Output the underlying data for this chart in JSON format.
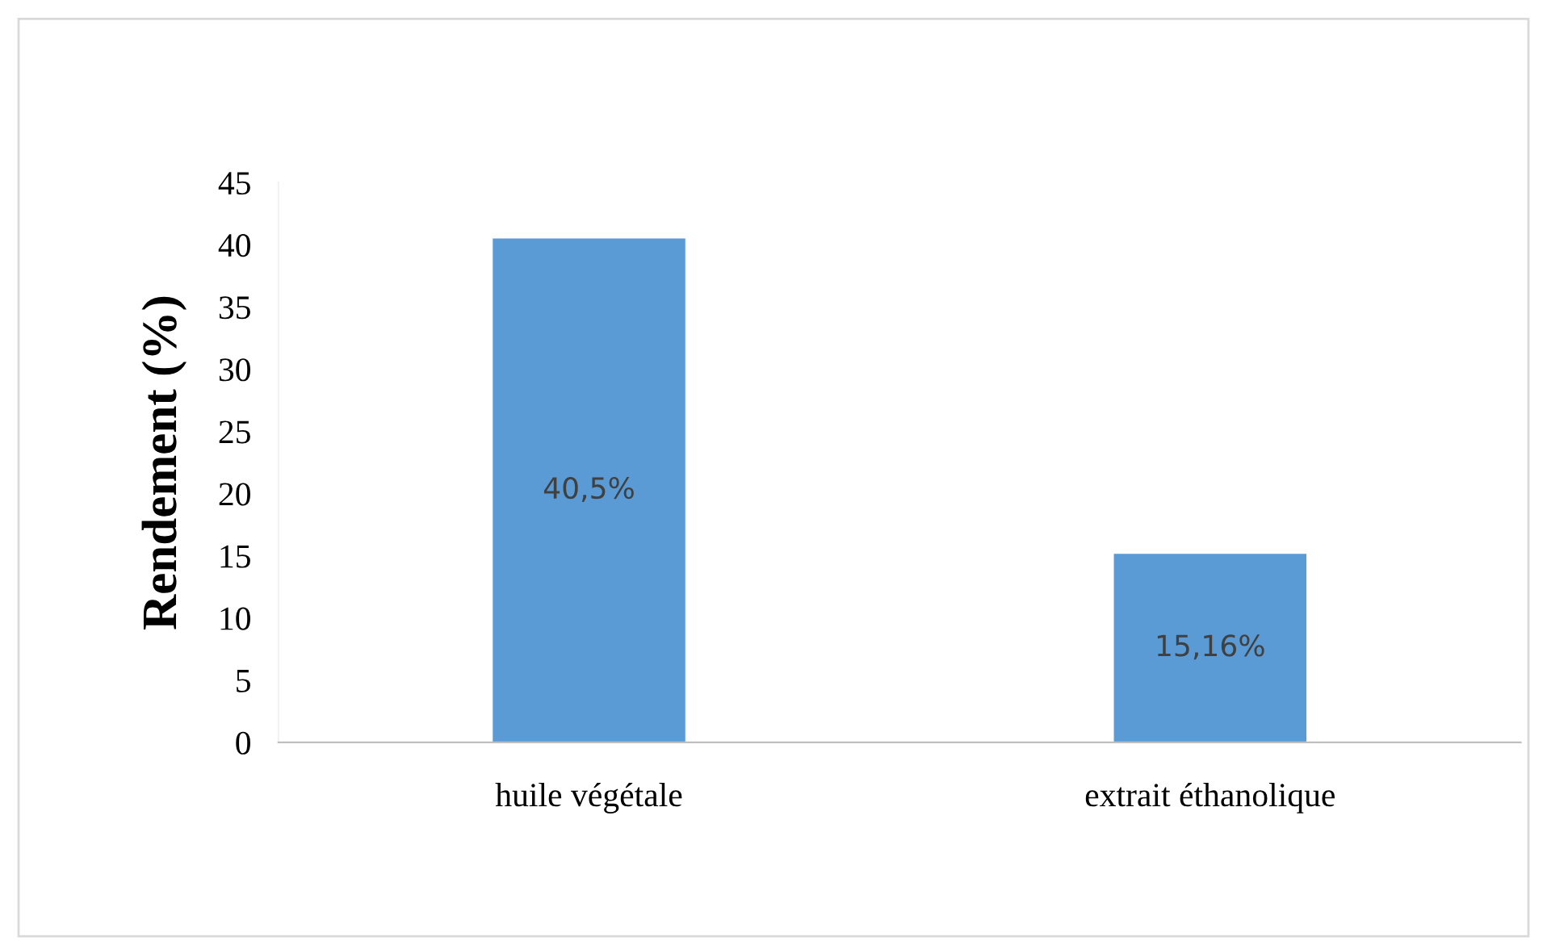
{
  "chart_data": {
    "type": "bar",
    "ylabel": "Rendement (%)",
    "categories": [
      "huile végétale",
      "extrait éthanolique"
    ],
    "values": [
      40.5,
      15.16
    ],
    "value_labels": [
      "40,5%",
      "15,16%"
    ],
    "color": "#5b9bd5",
    "ylim": [
      0,
      45
    ],
    "yticks": [
      0,
      5,
      10,
      15,
      20,
      25,
      30,
      35,
      40,
      45
    ],
    "grid": false,
    "legend": false
  }
}
